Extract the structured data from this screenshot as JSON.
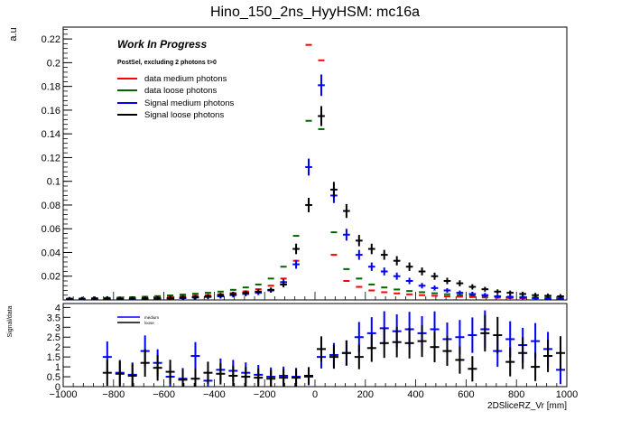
{
  "chart_data": [
    {
      "type": "scatter",
      "title": "Hino_150_2ns_HyyHSM: mc16a",
      "ylabel": "a.u",
      "xlabel": "",
      "xlim": [
        -1000,
        1000
      ],
      "ylim": [
        0,
        0.23
      ],
      "yticks": [
        0.02,
        0.04,
        0.06,
        0.08,
        0.1,
        0.12,
        0.14,
        0.16,
        0.18,
        0.2,
        0.22
      ],
      "ytick_labels": [
        "0.02",
        "0.04",
        "0.06",
        "0.08",
        "0.1",
        "0.12",
        "0.14",
        "0.16",
        "0.18",
        "0.2",
        "0.22"
      ],
      "x_bin_width": 50,
      "annotations": {
        "work_in_progress": "Work In Progress",
        "selection": "PostSel, excluding 2 photons t>0"
      },
      "series": [
        {
          "name": "data medium photons",
          "color": "#ff0000",
          "x": [
            -975,
            -925,
            -875,
            -825,
            -775,
            -725,
            -675,
            -625,
            -575,
            -525,
            -475,
            -425,
            -375,
            -325,
            -275,
            -225,
            -175,
            -125,
            -75,
            -25,
            25,
            75,
            125,
            175,
            225,
            275,
            325,
            375,
            425,
            475,
            525,
            575,
            625,
            675,
            725,
            775,
            825,
            875,
            925,
            975
          ],
          "y": [
            0.001,
            0.001,
            0.0012,
            0.0014,
            0.0016,
            0.0018,
            0.002,
            0.0023,
            0.0027,
            0.003,
            0.0035,
            0.004,
            0.0048,
            0.0058,
            0.0072,
            0.009,
            0.012,
            0.018,
            0.033,
            0.215,
            0.202,
            0.038,
            0.016,
            0.011,
            0.008,
            0.0065,
            0.0055,
            0.0047,
            0.004,
            0.0035,
            0.003,
            0.0027,
            0.0024,
            0.0021,
            0.0019,
            0.0017,
            0.0015,
            0.0013,
            0.0012,
            0.0011
          ]
        },
        {
          "name": "data loose photons",
          "color": "#006400",
          "x": [
            -975,
            -925,
            -875,
            -825,
            -775,
            -725,
            -675,
            -625,
            -575,
            -525,
            -475,
            -425,
            -375,
            -325,
            -275,
            -225,
            -175,
            -125,
            -75,
            -25,
            25,
            75,
            125,
            175,
            225,
            275,
            325,
            375,
            425,
            475,
            525,
            575,
            625,
            675,
            725,
            775,
            825,
            875,
            925,
            975
          ],
          "y": [
            0.0012,
            0.0013,
            0.0015,
            0.0017,
            0.002,
            0.0023,
            0.0027,
            0.0032,
            0.0038,
            0.0045,
            0.0052,
            0.006,
            0.007,
            0.0085,
            0.0105,
            0.013,
            0.018,
            0.028,
            0.054,
            0.151,
            0.144,
            0.057,
            0.026,
            0.018,
            0.013,
            0.0105,
            0.0088,
            0.0075,
            0.0065,
            0.0056,
            0.0048,
            0.0042,
            0.0037,
            0.0033,
            0.003,
            0.0027,
            0.0024,
            0.0021,
            0.0019,
            0.0017
          ]
        },
        {
          "name": "Signal medium photons",
          "color": "#0000ff",
          "x": [
            -975,
            -925,
            -875,
            -825,
            -775,
            -725,
            -675,
            -625,
            -575,
            -525,
            -475,
            -425,
            -375,
            -325,
            -275,
            -225,
            -175,
            -125,
            -75,
            -25,
            25,
            75,
            125,
            175,
            225,
            275,
            325,
            375,
            425,
            475,
            525,
            575,
            625,
            675,
            725,
            775,
            825,
            875,
            925,
            975
          ],
          "y": [
            0.0005,
            0.0005,
            0.0007,
            0.001,
            0.0008,
            0.0006,
            0.001,
            0.0009,
            0.0012,
            0.0015,
            0.002,
            0.0025,
            0.003,
            0.004,
            0.005,
            0.006,
            0.008,
            0.015,
            0.03,
            0.112,
            0.181,
            0.088,
            0.055,
            0.038,
            0.028,
            0.024,
            0.02,
            0.016,
            0.012,
            0.01,
            0.008,
            0.006,
            0.005,
            0.004,
            0.003,
            0.0025,
            0.002,
            0.0015,
            0.0012,
            0.001
          ]
        },
        {
          "name": "Signal loose photons",
          "color": "#000000",
          "x": [
            -975,
            -925,
            -875,
            -825,
            -775,
            -725,
            -675,
            -625,
            -575,
            -525,
            -475,
            -425,
            -375,
            -325,
            -275,
            -225,
            -175,
            -125,
            -75,
            -25,
            25,
            75,
            125,
            175,
            225,
            275,
            325,
            375,
            425,
            475,
            525,
            575,
            625,
            675,
            725,
            775,
            825,
            875,
            925,
            975
          ],
          "y": [
            0.0005,
            0.0006,
            0.001,
            0.0012,
            0.0009,
            0.0011,
            0.0012,
            0.0013,
            0.0015,
            0.002,
            0.0024,
            0.003,
            0.004,
            0.005,
            0.006,
            0.007,
            0.0085,
            0.013,
            0.043,
            0.08,
            0.155,
            0.093,
            0.075,
            0.05,
            0.043,
            0.038,
            0.033,
            0.028,
            0.024,
            0.02,
            0.016,
            0.014,
            0.011,
            0.009,
            0.007,
            0.006,
            0.005,
            0.004,
            0.0035,
            0.003
          ]
        }
      ]
    },
    {
      "type": "scatter",
      "title": "",
      "ylabel": "Signal/data",
      "xlabel": "2DSliceRZ_Vr [mm]",
      "xlim": [
        -1000,
        1000
      ],
      "ylim": [
        0,
        4.2
      ],
      "yticks": [
        0,
        0.5,
        1,
        1.5,
        2,
        2.5,
        3,
        3.5,
        4
      ],
      "ytick_labels": [
        "0",
        "0.5",
        "1",
        "1.5",
        "2",
        "2.5",
        "3",
        "3.5",
        "4"
      ],
      "xticks": [
        -1000,
        -800,
        -600,
        -400,
        -200,
        0,
        200,
        400,
        600,
        800,
        1000
      ],
      "xtick_labels": [
        "−1000",
        "−800",
        "−600",
        "−400",
        "−200",
        "0",
        "200",
        "400",
        "600",
        "800",
        "1000"
      ],
      "series": [
        {
          "name": "medium",
          "color": "#0000ff",
          "x": [
            -825,
            -775,
            -725,
            -675,
            -625,
            -575,
            -525,
            -475,
            -425,
            -375,
            -325,
            -275,
            -225,
            -175,
            -125,
            -75,
            -25,
            25,
            75,
            125,
            175,
            225,
            275,
            325,
            375,
            425,
            475,
            525,
            575,
            625,
            675,
            725,
            775,
            825,
            875,
            925,
            975
          ],
          "y": [
            1.5,
            0.7,
            0.6,
            1.8,
            1.2,
            0.5,
            0.4,
            1.55,
            0.3,
            0.85,
            0.8,
            0.7,
            0.6,
            0.5,
            0.55,
            0.5,
            0.5,
            1.5,
            1.6,
            1.7,
            2.5,
            2.7,
            2.95,
            2.8,
            2.9,
            2.7,
            2.9,
            2.4,
            2.5,
            2.6,
            2.9,
            1.8,
            2.4,
            2.1,
            2.3,
            1.9,
            0.85
          ]
        },
        {
          "name": "loose",
          "color": "#000000",
          "x": [
            -825,
            -775,
            -725,
            -675,
            -625,
            -575,
            -525,
            -475,
            -425,
            -375,
            -325,
            -275,
            -225,
            -175,
            -125,
            -75,
            -25,
            25,
            75,
            125,
            175,
            225,
            275,
            325,
            375,
            425,
            475,
            525,
            575,
            625,
            675,
            725,
            775,
            825,
            875,
            925,
            975
          ],
          "y": [
            0.7,
            0.65,
            0.55,
            1.2,
            0.95,
            0.75,
            0.35,
            0.4,
            0.7,
            0.65,
            0.55,
            0.5,
            0.45,
            0.4,
            0.45,
            0.45,
            0.55,
            1.9,
            1.5,
            1.7,
            1.5,
            1.95,
            2.2,
            2.25,
            2.2,
            2.3,
            2.0,
            1.8,
            1.35,
            0.9,
            2.7,
            2.6,
            1.25,
            1.7,
            1.0,
            1.55,
            1.7
          ]
        }
      ]
    }
  ]
}
